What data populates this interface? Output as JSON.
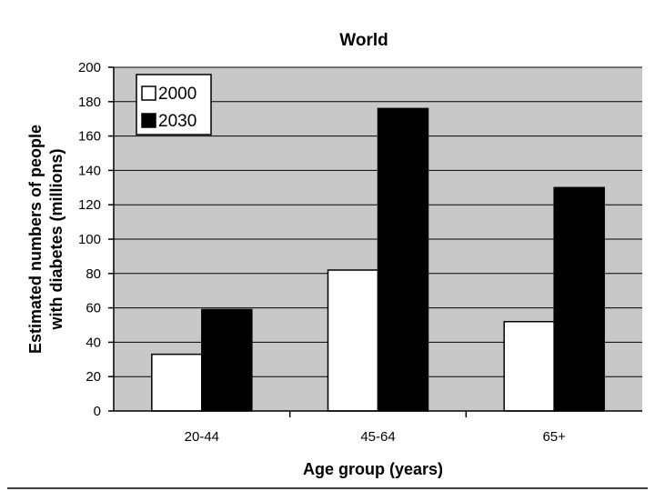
{
  "chart_data": {
    "type": "bar",
    "title": "World",
    "xlabel": "Age group (years)",
    "ylabel": [
      "Estimated numbers of people",
      "with diabetes (millions)"
    ],
    "categories": [
      "20-44",
      "45-64",
      "65+"
    ],
    "series": [
      {
        "name": "2000",
        "values": [
          33,
          82,
          52
        ],
        "color": "#ffffff"
      },
      {
        "name": "2030",
        "values": [
          59,
          176,
          130
        ],
        "color": "#000000"
      }
    ],
    "ylim": [
      0,
      200
    ],
    "yticks": [
      "0",
      "20",
      "40",
      "60",
      "80",
      "100",
      "120",
      "140",
      "160",
      "180",
      "200"
    ],
    "grid": true,
    "legend_position": "top-left",
    "plot_background": "#c8c8c8"
  }
}
